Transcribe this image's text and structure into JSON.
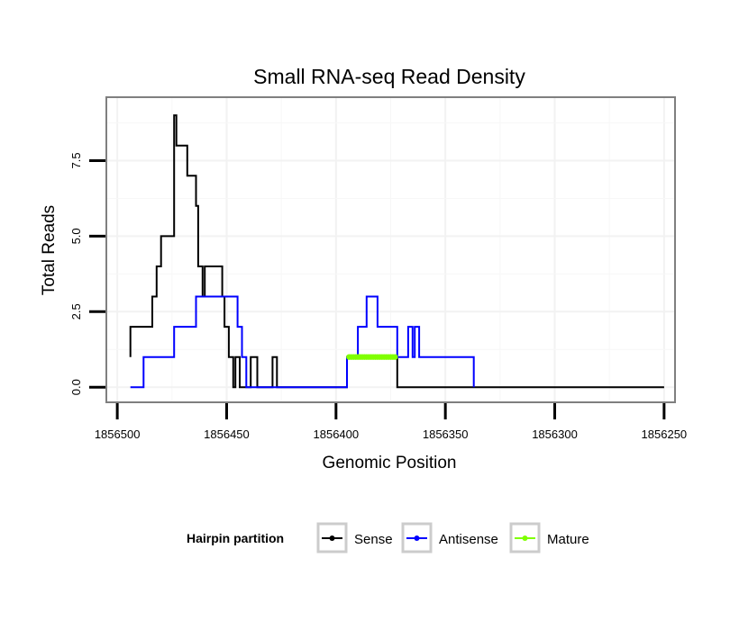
{
  "chart_data": {
    "type": "line",
    "title": "Small RNA-seq Read Density",
    "xlabel": "Genomic Position",
    "ylabel": "Total Reads",
    "xlim": [
      1856505,
      1856245
    ],
    "ylim": [
      -0.5,
      9.6
    ],
    "x_reversed": true,
    "x_ticks": [
      1856500,
      1856450,
      1856400,
      1856350,
      1856300,
      1856250
    ],
    "x_tick_labels": [
      "1856500",
      "1856450",
      "1856400",
      "1856350",
      "1856300",
      "1856250"
    ],
    "y_ticks": [
      0,
      2.5,
      5,
      7.5
    ],
    "y_tick_labels": [
      "0.0",
      "2.5",
      "5.0",
      "7.5"
    ],
    "legend": {
      "title": "Hairpin partition",
      "position": "bottom",
      "entries": [
        {
          "label": "Sense",
          "color": "#000000"
        },
        {
          "label": "Antisense",
          "color": "#0000ff"
        },
        {
          "label": "Mature",
          "color": "#7fff00"
        }
      ]
    },
    "series": [
      {
        "name": "Sense",
        "color": "#000000",
        "x": [
          1856494,
          1856494,
          1856484,
          1856484,
          1856482,
          1856482,
          1856480,
          1856480,
          1856474,
          1856474,
          1856473,
          1856473,
          1856468,
          1856468,
          1856464,
          1856464,
          1856463,
          1856463,
          1856461,
          1856461,
          1856460,
          1856460,
          1856452,
          1856452,
          1856451,
          1856451,
          1856449,
          1856449,
          1856447,
          1856447,
          1856446,
          1856446,
          1856444,
          1856444,
          1856439,
          1856439,
          1856436,
          1856436,
          1856429,
          1856429,
          1856427,
          1856427,
          1856395,
          1856395,
          1856372,
          1856372,
          1856250
        ],
        "y": [
          1,
          2,
          2,
          3,
          3,
          4,
          4,
          5,
          5,
          9,
          9,
          8,
          8,
          7,
          7,
          6,
          6,
          4,
          4,
          3,
          3,
          4,
          4,
          3,
          3,
          2,
          2,
          1,
          1,
          0,
          0,
          1,
          1,
          0,
          0,
          1,
          1,
          0,
          0,
          1,
          1,
          0,
          0,
          1,
          1,
          0,
          0
        ]
      },
      {
        "name": "Antisense",
        "color": "#0000ff",
        "x": [
          1856494,
          1856488,
          1856488,
          1856474,
          1856474,
          1856464,
          1856464,
          1856445,
          1856445,
          1856443,
          1856443,
          1856441,
          1856441,
          1856440,
          1856440,
          1856434,
          1856434,
          1856420,
          1856420,
          1856402,
          1856402,
          1856395,
          1856395,
          1856390,
          1856390,
          1856386,
          1856386,
          1856381,
          1856381,
          1856372,
          1856372,
          1856367,
          1856367,
          1856365,
          1856365,
          1856364,
          1856364,
          1856362,
          1856362,
          1856360,
          1856360,
          1856357,
          1856357,
          1856337,
          1856337
        ],
        "y": [
          0,
          0,
          1,
          1,
          2,
          2,
          3,
          3,
          2,
          2,
          1,
          1,
          0,
          0,
          0,
          0,
          0,
          0,
          0,
          0,
          0,
          0,
          1,
          1,
          2,
          2,
          3,
          3,
          2,
          2,
          1,
          1,
          2,
          2,
          1,
          1,
          2,
          2,
          1,
          1,
          1,
          1,
          1,
          1,
          0
        ]
      },
      {
        "name": "Mature",
        "color": "#7fff00",
        "x": [
          1856394,
          1856373
        ],
        "y": [
          1,
          1
        ],
        "markers": true
      }
    ]
  }
}
